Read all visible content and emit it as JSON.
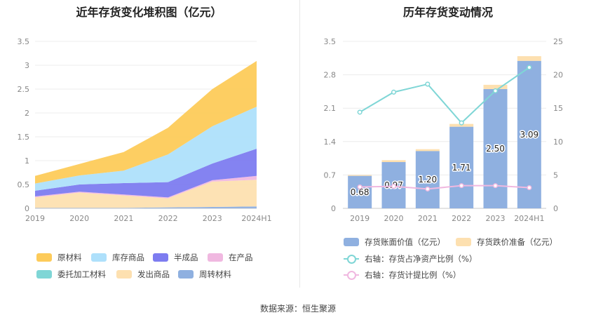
{
  "left_chart": {
    "title": "近年存货变化堆积图（亿元）"
  },
  "right_chart": {
    "title": "历年存货变动情况"
  },
  "source": "数据来源：恒生聚源",
  "colors": {
    "raw_material": "#fdcb5a",
    "inventory_goods": "#aee0fb",
    "semi_finished": "#7d7cf0",
    "wip": "#f0b8e0",
    "consigned": "#7fd6d6",
    "shipped_goods": "#fde0b0",
    "turnover_material": "#8fb0e0",
    "bar_book": "#8fb0e0",
    "bar_impair": "#fde0b0",
    "line_ratio": "#7fd6d6",
    "line_provision": "#f0b8e0"
  },
  "chart_data": [
    {
      "type": "area",
      "stacked": true,
      "title": "近年存货变化堆积图（亿元）",
      "categories": [
        "2019",
        "2020",
        "2021",
        "2022",
        "2023",
        "2024H1"
      ],
      "ylim": [
        0,
        3.5
      ],
      "yticks": [
        "0",
        "0.5",
        "1",
        "1.5",
        "2",
        "2.5",
        "3",
        "3.5"
      ],
      "series": [
        {
          "name": "周转材料",
          "key": "turnover_material",
          "values": [
            0.01,
            0.01,
            0.01,
            0.02,
            0.03,
            0.04
          ]
        },
        {
          "name": "发出商品",
          "key": "shipped_goods",
          "values": [
            0.22,
            0.32,
            0.26,
            0.19,
            0.53,
            0.56
          ]
        },
        {
          "name": "委托加工材料",
          "key": "consigned",
          "values": [
            0.0,
            0.0,
            0.0,
            0.0,
            0.0,
            0.0
          ]
        },
        {
          "name": "在产品",
          "key": "wip",
          "values": [
            0.02,
            0.02,
            0.02,
            0.02,
            0.03,
            0.08
          ]
        },
        {
          "name": "半成品",
          "key": "semi_finished",
          "values": [
            0.12,
            0.15,
            0.24,
            0.32,
            0.35,
            0.57
          ]
        },
        {
          "name": "库存商品",
          "key": "inventory_goods",
          "values": [
            0.15,
            0.19,
            0.26,
            0.58,
            0.78,
            0.88
          ]
        },
        {
          "name": "原材料",
          "key": "raw_material",
          "values": [
            0.16,
            0.24,
            0.39,
            0.56,
            0.78,
            0.96
          ]
        }
      ],
      "legend": [
        {
          "name": "原材料",
          "key": "raw_material"
        },
        {
          "name": "库存商品",
          "key": "inventory_goods"
        },
        {
          "name": "半成品",
          "key": "semi_finished"
        },
        {
          "name": "在产品",
          "key": "wip"
        },
        {
          "name": "委托加工材料",
          "key": "consigned"
        },
        {
          "name": "发出商品",
          "key": "shipped_goods"
        },
        {
          "name": "周转材料",
          "key": "turnover_material"
        }
      ]
    },
    {
      "type": "bar",
      "title": "历年存货变动情况",
      "categories": [
        "2019",
        "2020",
        "2021",
        "2022",
        "2023",
        "2024H1"
      ],
      "ylim": [
        0,
        3.5
      ],
      "yticks": [
        "0",
        "0.7",
        "1.4",
        "2.1",
        "2.8",
        "3.5"
      ],
      "y2lim": [
        0,
        25
      ],
      "y2ticks": [
        "0",
        "5",
        "10",
        "15",
        "20",
        "25"
      ],
      "series": [
        {
          "name": "存货账面价值（亿元）",
          "key": "bar_book",
          "axis": "left",
          "values": [
            0.68,
            0.97,
            1.2,
            1.71,
            2.5,
            3.09
          ],
          "labels": [
            "0.68",
            "0.97",
            "1.20",
            "1.71",
            "2.50",
            "3.09"
          ]
        },
        {
          "name": "存货跌价准备（亿元）",
          "key": "bar_impair",
          "axis": "left",
          "values": [
            0.02,
            0.04,
            0.04,
            0.06,
            0.09,
            0.1
          ]
        },
        {
          "name": "右轴：存货占净资产比例（%）",
          "key": "line_ratio",
          "axis": "right",
          "type": "line",
          "values": [
            14.4,
            17.4,
            18.6,
            12.8,
            17.6,
            21.1
          ]
        },
        {
          "name": "右轴：存货计提比例（%）",
          "key": "line_provision",
          "axis": "right",
          "type": "line",
          "values": [
            3.2,
            3.3,
            2.9,
            3.4,
            3.4,
            3.1
          ]
        }
      ]
    }
  ]
}
